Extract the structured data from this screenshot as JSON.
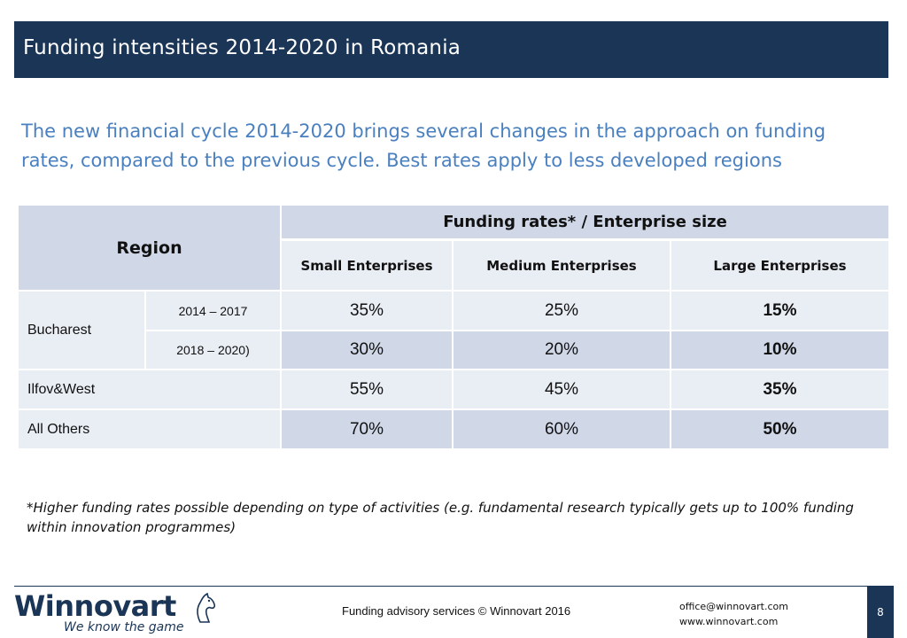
{
  "slide": {
    "title": "Funding intensities 2014-2020 in Romania",
    "subtitle": "The new financial cycle 2014-2020 brings several changes in the approach on funding rates, compared to the previous cycle. Best rates apply to less developed regions"
  },
  "table": {
    "region_header": "Region",
    "group_header": "Funding rates* / Enterprise size",
    "columns": [
      "Small Enterprises",
      "Medium Enterprises",
      "Large Enterprises"
    ],
    "rows": [
      {
        "region": "Bucharest",
        "period": "2014 – 2017",
        "values": [
          "35%",
          "25%",
          "15%"
        ]
      },
      {
        "region": "Bucharest",
        "period": "2018 – 2020)",
        "values": [
          "30%",
          "20%",
          "10%"
        ]
      },
      {
        "region": "Ilfov&West",
        "period": "",
        "values": [
          "55%",
          "45%",
          "35%"
        ]
      },
      {
        "region": "All Others",
        "period": "",
        "values": [
          "70%",
          "60%",
          "50%"
        ]
      }
    ]
  },
  "footnote": "*Higher funding rates possible depending on type of activities (e.g. fundamental research typically gets up to 100% funding within innovation programmes)",
  "footer": {
    "logo_name": "Winnovart",
    "logo_tagline": "We know the game",
    "center_text": "Funding advisory services © Winnovart 2016",
    "email": "office@winnovart.com",
    "website": "www.winnovart.com",
    "page_number": "8"
  },
  "colors": {
    "navy": "#1b3556",
    "subtitle_blue": "#4a80bf",
    "row_light": "#e9edf4",
    "row_mid": "#d0d8e8"
  }
}
